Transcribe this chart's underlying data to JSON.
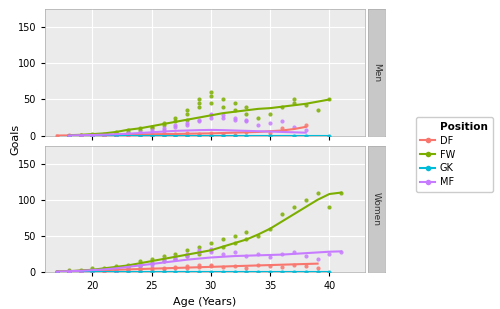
{
  "title": "",
  "xlabel": "Age (Years)",
  "ylabel": "Goals",
  "facet_labels": [
    "Men",
    "Women"
  ],
  "positions": [
    "DF",
    "FW",
    "GK",
    "MF"
  ],
  "colors": {
    "DF": "#f8766d",
    "FW": "#7cae00",
    "GK": "#00bcd8",
    "MF": "#c77cff"
  },
  "men_ylim": [
    0,
    175
  ],
  "women_ylim": [
    0,
    175
  ],
  "xlim": [
    16,
    43
  ],
  "men_yticks": [
    0,
    50,
    100,
    150
  ],
  "women_yticks": [
    0,
    50,
    100,
    150
  ],
  "xticks": [
    20,
    25,
    30,
    35,
    40
  ],
  "men_scatter": {
    "DF": {
      "x": [
        17,
        18,
        18,
        19,
        19,
        20,
        20,
        21,
        21,
        22,
        22,
        23,
        23,
        24,
        24,
        25,
        25,
        26,
        26,
        27,
        27,
        28,
        28,
        29,
        29,
        30,
        30,
        31,
        32,
        33,
        35,
        36,
        38
      ],
      "y": [
        0,
        0,
        1,
        0,
        1,
        0,
        1,
        0,
        2,
        0,
        1,
        0,
        2,
        0,
        3,
        0,
        2,
        0,
        3,
        0,
        2,
        0,
        3,
        1,
        2,
        0,
        4,
        2,
        1,
        5,
        3,
        10,
        15
      ]
    },
    "FW": {
      "x": [
        18,
        19,
        20,
        21,
        22,
        22,
        23,
        23,
        24,
        24,
        25,
        25,
        26,
        26,
        27,
        27,
        28,
        28,
        28,
        29,
        29,
        29,
        30,
        30,
        30,
        31,
        31,
        32,
        32,
        33,
        33,
        34,
        35,
        36,
        37,
        37,
        38,
        39,
        40
      ],
      "y": [
        0,
        1,
        2,
        1,
        3,
        5,
        5,
        8,
        7,
        10,
        10,
        12,
        15,
        18,
        20,
        25,
        22,
        30,
        35,
        40,
        45,
        50,
        45,
        55,
        60,
        40,
        50,
        35,
        45,
        30,
        40,
        25,
        30,
        40,
        45,
        50,
        42,
        35,
        50
      ]
    },
    "GK": {
      "x": [
        18,
        20,
        22,
        24,
        25,
        26,
        27,
        28,
        29,
        30,
        31,
        32,
        33,
        35,
        37,
        38,
        40
      ],
      "y": [
        0,
        0,
        0,
        0,
        0,
        0,
        0,
        0,
        0,
        0,
        0,
        0,
        0,
        0,
        0,
        0,
        0
      ]
    },
    "MF": {
      "x": [
        18,
        19,
        20,
        21,
        22,
        23,
        23,
        24,
        24,
        25,
        25,
        26,
        26,
        27,
        27,
        28,
        28,
        29,
        29,
        30,
        30,
        30,
        31,
        31,
        32,
        32,
        33,
        33,
        34,
        35,
        36,
        37,
        38
      ],
      "y": [
        0,
        0,
        1,
        1,
        2,
        2,
        3,
        3,
        5,
        5,
        7,
        8,
        10,
        12,
        15,
        15,
        18,
        20,
        22,
        25,
        28,
        30,
        25,
        28,
        22,
        25,
        20,
        22,
        15,
        18,
        20,
        12,
        8
      ]
    }
  },
  "men_loess": {
    "DF": {
      "x": [
        17,
        18,
        19,
        20,
        21,
        22,
        23,
        24,
        25,
        26,
        27,
        28,
        29,
        30,
        31,
        32,
        33,
        34,
        35,
        36,
        37,
        38
      ],
      "y": [
        0,
        0.2,
        0.4,
        0.6,
        0.8,
        1.0,
        1.2,
        1.5,
        1.8,
        2.0,
        2.2,
        2.5,
        2.8,
        3.0,
        3.5,
        4.0,
        4.5,
        5.0,
        6.0,
        7.0,
        9.0,
        12.0
      ]
    },
    "FW": {
      "x": [
        18,
        19,
        20,
        21,
        22,
        23,
        24,
        25,
        26,
        27,
        28,
        29,
        30,
        31,
        32,
        33,
        34,
        35,
        36,
        37,
        38,
        39,
        40
      ],
      "y": [
        0.5,
        1.0,
        2.0,
        3.0,
        5.0,
        8.0,
        10.0,
        13.0,
        16.0,
        19.0,
        22.0,
        25.0,
        28.0,
        31.0,
        33.0,
        35.0,
        37.0,
        38.0,
        40.0,
        42.0,
        44.0,
        47.0,
        50.0
      ]
    },
    "GK": {
      "x": [
        18,
        20,
        22,
        24,
        26,
        28,
        30,
        32,
        34,
        36,
        38,
        40
      ],
      "y": [
        0,
        0,
        0,
        0,
        0,
        0,
        0,
        0,
        0,
        0,
        0,
        0
      ]
    },
    "MF": {
      "x": [
        18,
        19,
        20,
        21,
        22,
        23,
        24,
        25,
        26,
        27,
        28,
        29,
        30,
        31,
        32,
        33,
        34,
        35,
        36,
        37,
        38
      ],
      "y": [
        0.2,
        0.5,
        0.8,
        1.2,
        1.8,
        2.5,
        3.5,
        4.5,
        5.5,
        6.5,
        7.0,
        7.5,
        7.8,
        7.5,
        7.0,
        6.5,
        6.0,
        5.5,
        5.0,
        4.5,
        4.0
      ]
    }
  },
  "women_scatter": {
    "DF": {
      "x": [
        17,
        18,
        18,
        19,
        20,
        21,
        22,
        22,
        23,
        23,
        24,
        24,
        25,
        25,
        26,
        26,
        27,
        27,
        28,
        28,
        29,
        29,
        30,
        30,
        31,
        32,
        33,
        34,
        35,
        36,
        37,
        38,
        39
      ],
      "y": [
        0,
        0,
        1,
        0,
        1,
        0,
        2,
        1,
        2,
        2,
        3,
        4,
        3,
        5,
        4,
        6,
        5,
        7,
        6,
        8,
        7,
        9,
        8,
        10,
        7,
        8,
        6,
        9,
        8,
        7,
        10,
        8,
        5
      ]
    },
    "FW": {
      "x": [
        17,
        18,
        18,
        19,
        19,
        20,
        20,
        21,
        21,
        22,
        22,
        23,
        23,
        24,
        24,
        25,
        25,
        26,
        26,
        27,
        27,
        28,
        28,
        29,
        29,
        30,
        30,
        31,
        31,
        32,
        32,
        33,
        33,
        34,
        35,
        36,
        37,
        38,
        39,
        40,
        41
      ],
      "y": [
        0,
        1,
        2,
        1,
        3,
        2,
        5,
        3,
        6,
        5,
        8,
        7,
        10,
        8,
        15,
        12,
        18,
        15,
        22,
        18,
        25,
        22,
        30,
        25,
        35,
        30,
        40,
        35,
        45,
        40,
        50,
        45,
        55,
        50,
        60,
        80,
        90,
        100,
        110,
        90,
        110
      ]
    },
    "GK": {
      "x": [
        17,
        18,
        20,
        22,
        23,
        24,
        25,
        26,
        27,
        28,
        29,
        30,
        31,
        32,
        33,
        34,
        35,
        36,
        37,
        38,
        39,
        40
      ],
      "y": [
        0,
        0,
        0,
        0,
        0,
        0,
        0,
        0,
        0,
        0,
        0,
        0,
        0,
        0,
        0,
        0,
        0,
        0,
        0,
        0,
        0,
        0
      ]
    },
    "MF": {
      "x": [
        17,
        18,
        18,
        19,
        20,
        21,
        22,
        22,
        23,
        23,
        24,
        24,
        25,
        25,
        26,
        26,
        27,
        27,
        28,
        28,
        29,
        29,
        30,
        30,
        31,
        32,
        33,
        34,
        35,
        36,
        37,
        38,
        39,
        40,
        41
      ],
      "y": [
        0,
        0,
        1,
        1,
        2,
        2,
        3,
        5,
        5,
        8,
        8,
        10,
        10,
        12,
        15,
        18,
        18,
        20,
        22,
        25,
        28,
        30,
        28,
        32,
        25,
        28,
        22,
        25,
        20,
        25,
        28,
        22,
        18,
        25,
        28
      ]
    }
  },
  "women_loess": {
    "DF": {
      "x": [
        17,
        18,
        19,
        20,
        21,
        22,
        23,
        24,
        25,
        26,
        27,
        28,
        29,
        30,
        31,
        32,
        33,
        34,
        35,
        36,
        37,
        38,
        39
      ],
      "y": [
        0.5,
        1.0,
        1.5,
        2.0,
        2.5,
        3.0,
        3.5,
        4.0,
        4.5,
        5.0,
        5.5,
        6.0,
        6.5,
        7.0,
        7.5,
        8.0,
        8.5,
        9.0,
        9.5,
        10.0,
        10.5,
        11.0,
        11.5
      ]
    },
    "FW": {
      "x": [
        17,
        18,
        19,
        20,
        21,
        22,
        23,
        24,
        25,
        26,
        27,
        28,
        29,
        30,
        31,
        32,
        33,
        34,
        35,
        36,
        37,
        38,
        39,
        40,
        41
      ],
      "y": [
        0.5,
        1.0,
        2.0,
        3.0,
        5.0,
        7.0,
        9.0,
        12.0,
        15.0,
        18.0,
        21.0,
        24.0,
        27.0,
        30.0,
        35.0,
        40.0,
        45.0,
        52.0,
        60.0,
        70.0,
        80.0,
        90.0,
        100.0,
        108.0,
        110.0
      ]
    },
    "GK": {
      "x": [
        17,
        18,
        20,
        22,
        24,
        26,
        28,
        30,
        32,
        34,
        36,
        38,
        40
      ],
      "y": [
        0,
        0,
        0,
        0,
        0,
        0,
        0,
        0,
        0,
        0,
        0,
        0,
        0
      ]
    },
    "MF": {
      "x": [
        17,
        18,
        19,
        20,
        21,
        22,
        23,
        24,
        25,
        26,
        27,
        28,
        29,
        30,
        31,
        32,
        33,
        34,
        35,
        36,
        37,
        38,
        39,
        40,
        41
      ],
      "y": [
        0.5,
        1.0,
        1.5,
        2.5,
        3.5,
        5.0,
        7.0,
        9.0,
        11.0,
        13.0,
        15.0,
        17.0,
        18.5,
        20.0,
        21.0,
        22.0,
        22.5,
        23.0,
        23.5,
        24.0,
        25.0,
        26.0,
        27.0,
        28.0,
        28.5
      ]
    }
  },
  "background_color": "#ebebeb",
  "panel_background": "#ebebeb",
  "grid_color": "#ffffff",
  "strip_color": "#c8c8c8",
  "strip_text_color": "#333333",
  "marker_size": 3,
  "line_width": 1.5,
  "legend_title": "Position"
}
